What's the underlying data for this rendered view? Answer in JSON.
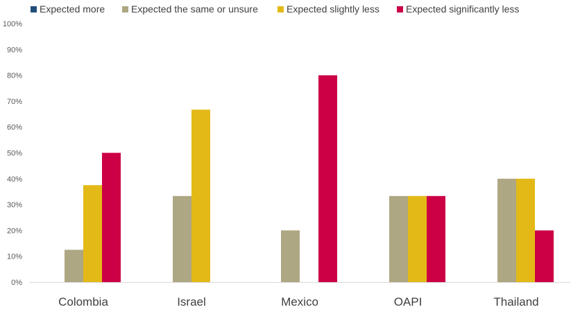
{
  "chart_data": {
    "type": "bar",
    "categories": [
      "Colombia",
      "Israel",
      "Mexico",
      "OAPI",
      "Thailand"
    ],
    "series": [
      {
        "name": "Expected more",
        "color": "#1f4e79",
        "values": [
          0,
          0,
          0,
          0,
          0
        ]
      },
      {
        "name": "Expected the same or unsure",
        "color": "#aea783",
        "values": [
          12.5,
          33.3,
          20,
          33.3,
          40
        ]
      },
      {
        "name": "Expected slightly less",
        "color": "#e3b917",
        "values": [
          37.5,
          66.7,
          0,
          33.3,
          40
        ]
      },
      {
        "name": "Expected significantly less",
        "color": "#cc0044",
        "values": [
          50,
          0,
          80,
          33.3,
          20
        ]
      }
    ],
    "ylim": [
      0,
      100
    ],
    "yticks": [
      "0%",
      "10%",
      "20%",
      "30%",
      "40%",
      "50%",
      "60%",
      "70%",
      "80%",
      "90%",
      "100%"
    ],
    "ytick_values": [
      0,
      10,
      20,
      30,
      40,
      50,
      60,
      70,
      80,
      90,
      100
    ],
    "legend_position": "top",
    "grid": false
  }
}
